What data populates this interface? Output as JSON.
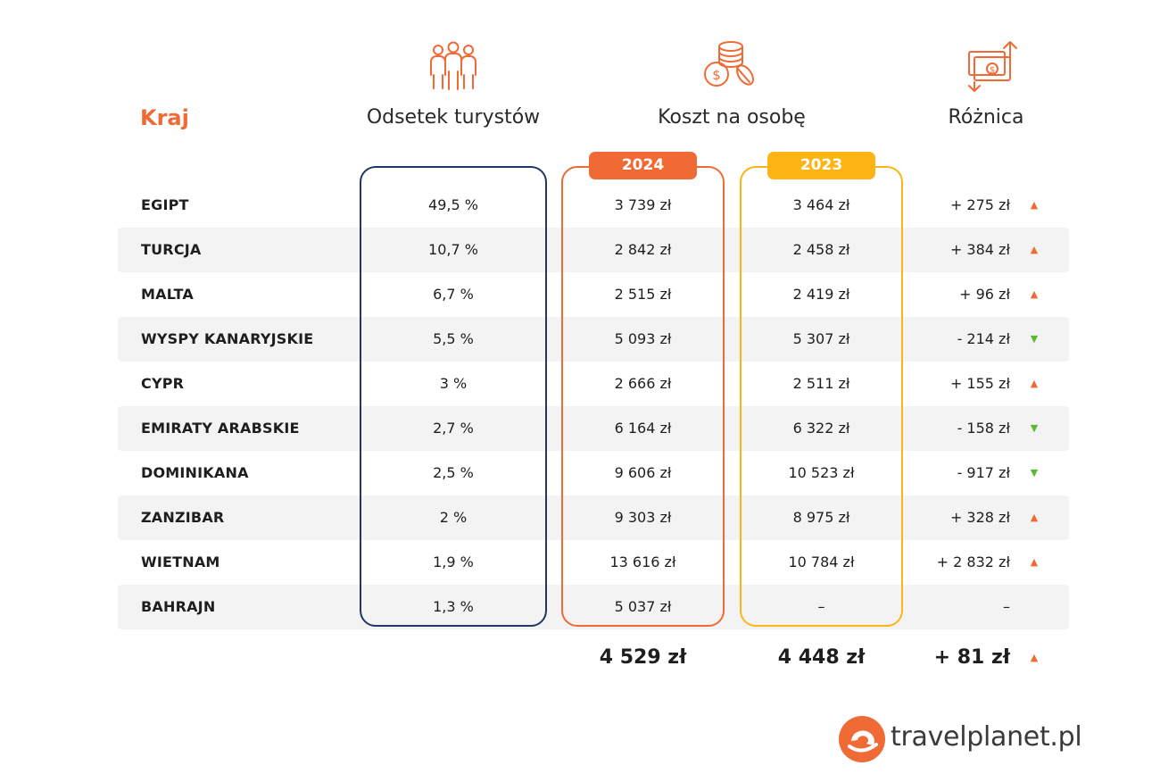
{
  "headers": {
    "country": "Kraj",
    "share": "Odsetek turystów",
    "cost": "Koszt na osobę",
    "difference": "Różnica"
  },
  "years": {
    "current": "2024",
    "previous": "2023"
  },
  "rows": [
    {
      "country": "EGIPT",
      "share": "49,5 %",
      "cost_2024": "3 739 zł",
      "cost_2023": "3 464 zł",
      "diff": "+ 275 zł",
      "trend": "up"
    },
    {
      "country": "TURCJA",
      "share": "10,7 %",
      "cost_2024": "2 842 zł",
      "cost_2023": "2 458 zł",
      "diff": "+ 384 zł",
      "trend": "up"
    },
    {
      "country": "MALTA",
      "share": "6,7 %",
      "cost_2024": "2 515 zł",
      "cost_2023": "2 419 zł",
      "diff": "+ 96 zł",
      "trend": "up"
    },
    {
      "country": "WYSPY KANARYJSKIE",
      "share": "5,5 %",
      "cost_2024": "5 093 zł",
      "cost_2023": "5 307 zł",
      "diff": "- 214 zł",
      "trend": "down"
    },
    {
      "country": "CYPR",
      "share": "3 %",
      "cost_2024": "2 666 zł",
      "cost_2023": "2 511 zł",
      "diff": "+ 155 zł",
      "trend": "up"
    },
    {
      "country": "EMIRATY ARABSKIE",
      "share": "2,7 %",
      "cost_2024": "6 164 zł",
      "cost_2023": "6 322 zł",
      "diff": "- 158 zł",
      "trend": "down"
    },
    {
      "country": "DOMINIKANA",
      "share": "2,5 %",
      "cost_2024": "9 606 zł",
      "cost_2023": "10 523 zł",
      "diff": "- 917 zł",
      "trend": "down"
    },
    {
      "country": "ZANZIBAR",
      "share": "2 %",
      "cost_2024": "9 303 zł",
      "cost_2023": "8 975 zł",
      "diff": "+ 328 zł",
      "trend": "up"
    },
    {
      "country": "WIETNAM",
      "share": "1,9 %",
      "cost_2024": "13 616 zł",
      "cost_2023": "10 784 zł",
      "diff": "+ 2 832 zł",
      "trend": "up"
    },
    {
      "country": "BAHRAJN",
      "share": "1,3 %",
      "cost_2024": "5 037 zł",
      "cost_2023": "–",
      "diff": "–",
      "trend": "none"
    }
  ],
  "totals": {
    "cost_2024": "4 529 zł",
    "cost_2023": "4 448 zł",
    "diff": "+ 81 zł",
    "trend": "up"
  },
  "logo": {
    "brand": "travelplanet.pl"
  },
  "icons": {
    "people": "people-group-icon",
    "coins": "coins-icon",
    "money_exchange": "money-exchange-icon"
  },
  "colors": {
    "accent": "#f06a35",
    "navy": "#1f3864",
    "yellow": "#fdb515",
    "up": "#f06a35",
    "down": "#5cb833"
  }
}
